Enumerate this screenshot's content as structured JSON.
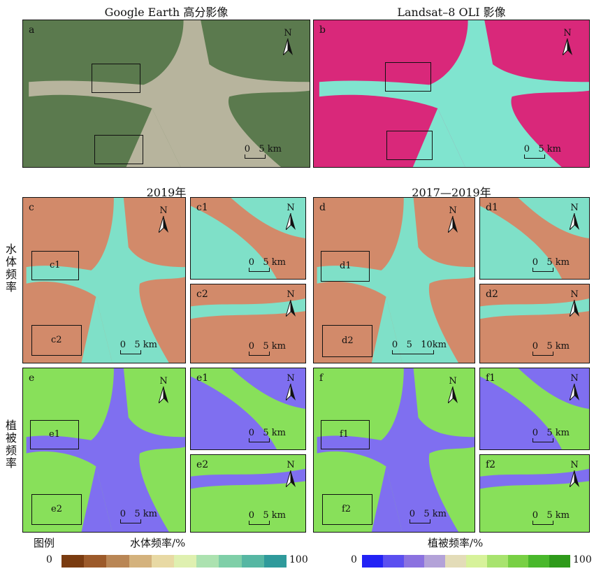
{
  "titles": {
    "a": "Google Earth 高分影像",
    "b": "Landsat–8 OLI 影像",
    "c": "2019年",
    "d": "2017—2019年"
  },
  "row_labels": {
    "water": "水体频率",
    "veg": "植被频率"
  },
  "panels": {
    "a": {
      "letter": "a",
      "scale": "0   5 km"
    },
    "b": {
      "letter": "b",
      "scale": "0   5 km"
    },
    "c": {
      "letter": "c",
      "scale": "0   5 km",
      "box1": "c1",
      "box2": "c2"
    },
    "c1": {
      "letter": "c1",
      "scale": "0   5 km"
    },
    "c2": {
      "letter": "c2",
      "scale": "0   5 km"
    },
    "d": {
      "letter": "d",
      "scale": "0   5   10km",
      "box1": "d1",
      "box2": "d2"
    },
    "d1": {
      "letter": "d1",
      "scale": "0   5 km"
    },
    "d2": {
      "letter": "d2",
      "scale": "0   5 km"
    },
    "e": {
      "letter": "e",
      "scale": "0   5 km",
      "box1": "e1",
      "box2": "e2"
    },
    "e1": {
      "letter": "e1",
      "scale": "0   5 km"
    },
    "e2": {
      "letter": "e2",
      "scale": "0   5 km"
    },
    "f": {
      "letter": "f",
      "scale": "0   5 km",
      "box1": "f1",
      "box2": "f2"
    },
    "f1": {
      "letter": "f1",
      "scale": "0   5 km"
    },
    "f2": {
      "letter": "f2",
      "scale": "0   5 km"
    }
  },
  "north_label": "N",
  "legend": {
    "title": "图例",
    "water_title": "水体频率/%",
    "veg_title": "植被频率/%",
    "min": "0",
    "max": "100",
    "water_colors": [
      "#7a3b10",
      "#9c5a2a",
      "#b98655",
      "#d4b27d",
      "#e8d9a4",
      "#dff0b0",
      "#ace2b0",
      "#7fcfa8",
      "#56b7a3",
      "#2f9a9b"
    ],
    "veg_colors": [
      "#2222f5",
      "#5b4ff0",
      "#8b72e0",
      "#b3a2d8",
      "#e3dcb8",
      "#d7f29a",
      "#a8e36e",
      "#78d044",
      "#49b82b",
      "#2e9a1a"
    ]
  },
  "colors": {
    "water_land": "#d28a6a",
    "water_water": "#7fe0c8",
    "veg_land": "#88e05a",
    "veg_water": "#7f6ff0",
    "sat_land": "#5b7a4e",
    "sat_water": "#b7b49d",
    "oli_land": "#d9287a",
    "oli_water": "#80e4cf"
  }
}
